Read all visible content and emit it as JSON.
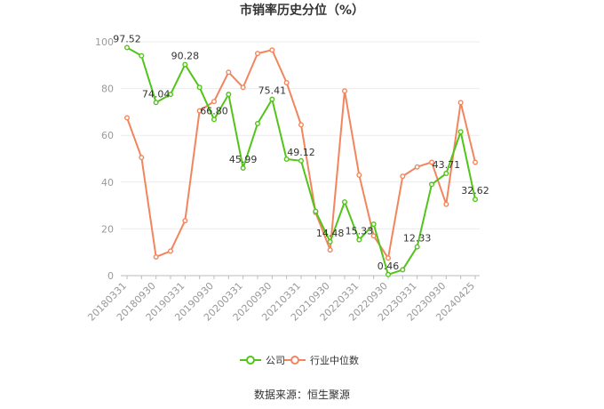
{
  "chart_data": {
    "type": "line",
    "title": "市销率历史分位（%）",
    "xlabel": "",
    "ylabel": "",
    "ylim": [
      0,
      100
    ],
    "yticks": [
      0,
      20,
      40,
      60,
      80,
      100
    ],
    "grid": true,
    "legend_position": "bottom",
    "x": [
      "20180331",
      "20180630",
      "20180930",
      "20181231",
      "20190331",
      "20190630",
      "20190930",
      "20191231",
      "20200331",
      "20200630",
      "20200930",
      "20201231",
      "20210331",
      "20210630",
      "20210930",
      "20211231",
      "20220331",
      "20220630",
      "20220930",
      "20221231",
      "20230331",
      "20230630",
      "20230930",
      "20231231",
      "20240425"
    ],
    "xtick_labels": [
      "20180331",
      "20180930",
      "20190331",
      "20190930",
      "20200331",
      "20200930",
      "20210331",
      "20210930",
      "20220331",
      "20220930",
      "20230331",
      "20230930",
      "20240425"
    ],
    "series": [
      {
        "name": "公司",
        "color": "#52c41a",
        "values": [
          97.52,
          94.0,
          74.04,
          77.5,
          90.28,
          80.5,
          66.8,
          77.5,
          45.99,
          65.0,
          75.41,
          49.8,
          49.12,
          27.5,
          14.48,
          31.5,
          15.33,
          22.0,
          0.46,
          2.5,
          12.33,
          39.0,
          43.71,
          61.5,
          32.62
        ],
        "labels": [
          "97.52",
          null,
          "74.04",
          null,
          "90.28",
          null,
          "66.80",
          null,
          "45.99",
          null,
          "75.41",
          null,
          "49.12",
          null,
          "14.48",
          null,
          "15.33",
          null,
          "0.46",
          null,
          "12.33",
          null,
          "43.71",
          null,
          "32.62"
        ]
      },
      {
        "name": "行业中位数",
        "color": "#f2855d",
        "values": [
          67.5,
          50.5,
          8.0,
          10.5,
          23.5,
          70.5,
          74.5,
          87.0,
          80.5,
          95.0,
          96.5,
          82.5,
          64.5,
          27.0,
          11.0,
          79.0,
          43.0,
          17.0,
          7.5,
          42.5,
          46.5,
          48.5,
          30.5,
          74.0,
          48.5
        ]
      }
    ]
  },
  "footer": {
    "source_text": "数据来源：恒生聚源"
  }
}
